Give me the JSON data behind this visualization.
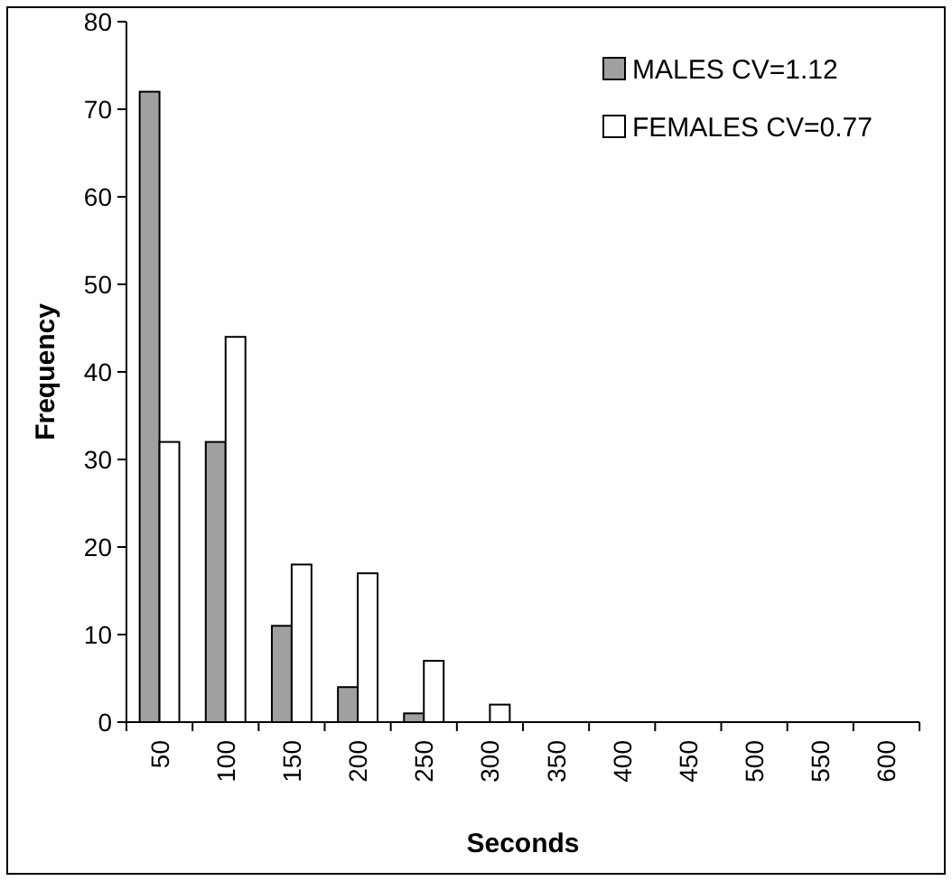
{
  "chart_data": {
    "type": "bar",
    "xlabel": "Seconds",
    "ylabel": "Frequency",
    "categories": [
      "50",
      "100",
      "150",
      "200",
      "250",
      "300",
      "350",
      "400",
      "450",
      "500",
      "550",
      "600"
    ],
    "series": [
      {
        "name": "MALES CV=1.12",
        "color": "#a0a0a0",
        "values": [
          72,
          32,
          11,
          4,
          1,
          0,
          0,
          0,
          0,
          0,
          0,
          0
        ]
      },
      {
        "name": "FEMALES CV=0.77",
        "color": "#ffffff",
        "values": [
          32,
          44,
          18,
          17,
          7,
          2,
          0,
          0,
          0,
          0,
          0,
          0
        ]
      }
    ],
    "ylim": [
      0,
      80
    ],
    "yticks": [
      0,
      10,
      20,
      30,
      40,
      50,
      60,
      70,
      80
    ],
    "grid": false,
    "legend": "top right"
  }
}
